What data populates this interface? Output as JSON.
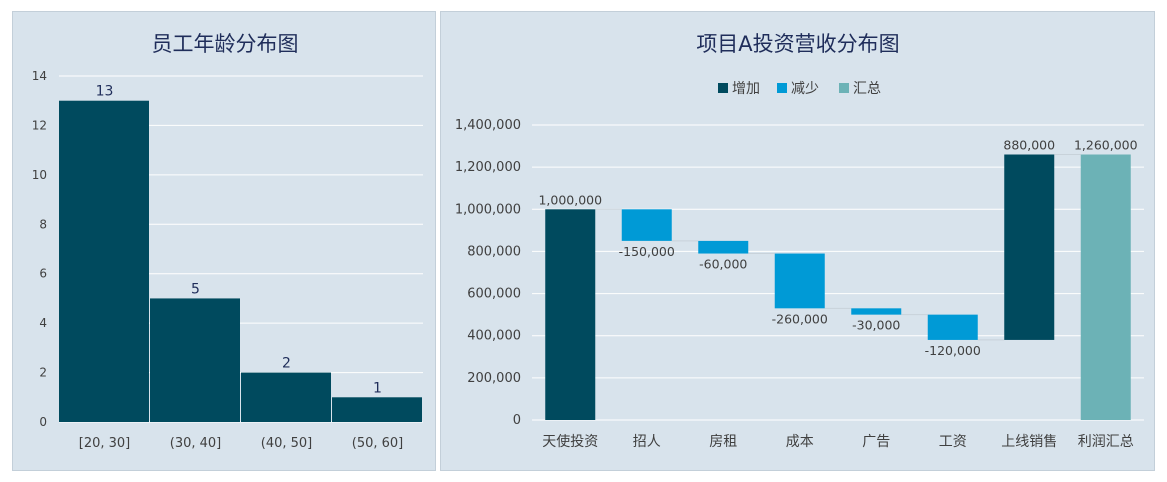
{
  "chart_data": [
    {
      "type": "bar",
      "title": "员工年龄分布图",
      "categories": [
        "[20, 30]",
        "(30, 40]",
        "(40, 50]",
        "(50, 60]"
      ],
      "values": [
        13,
        5,
        2,
        1
      ],
      "data_labels": [
        "13",
        "5",
        "2",
        "1"
      ],
      "ylim": [
        0,
        14
      ],
      "yticks": [
        "0",
        "2",
        "4",
        "6",
        "8",
        "10",
        "12",
        "14"
      ],
      "ytick_values": [
        0,
        2,
        4,
        6,
        8,
        10,
        12,
        14
      ],
      "grid": true,
      "colors": {
        "bar": "#004a5e",
        "grid": "#ffffff",
        "background": "#d8e3ec"
      }
    },
    {
      "type": "bar",
      "subtype": "waterfall",
      "title": "项目A投资营收分布图",
      "categories": [
        "天使投资",
        "招人",
        "房租",
        "成本",
        "广告",
        "工资",
        "上线销售",
        "利润汇总"
      ],
      "values": [
        1000000,
        -150000,
        -60000,
        -260000,
        -30000,
        -120000,
        880000,
        1260000
      ],
      "kinds": [
        "increase",
        "decrease",
        "decrease",
        "decrease",
        "decrease",
        "decrease",
        "increase",
        "total"
      ],
      "data_labels": [
        "1,000,000",
        "-150,000",
        "-60,000",
        "-260,000",
        "-30,000",
        "-120,000",
        "880,000",
        "1,260,000"
      ],
      "legend": [
        {
          "name": "增加",
          "color": "#004a5e"
        },
        {
          "name": "减少",
          "color": "#009ad6"
        },
        {
          "name": "汇总",
          "color": "#6cb2b6"
        }
      ],
      "legend_position": "top",
      "ylim": [
        0,
        1400000
      ],
      "yticks": [
        "0",
        "200,000",
        "400,000",
        "600,000",
        "800,000",
        "1,000,000",
        "1,200,000",
        "1,400,000"
      ],
      "ytick_values": [
        0,
        200000,
        400000,
        600000,
        800000,
        1000000,
        1200000,
        1400000
      ],
      "grid": true,
      "colors": {
        "increase": "#004a5e",
        "decrease": "#009ad6",
        "total": "#6cb2b6",
        "grid": "#ffffff",
        "background": "#d8e3ec"
      }
    }
  ]
}
